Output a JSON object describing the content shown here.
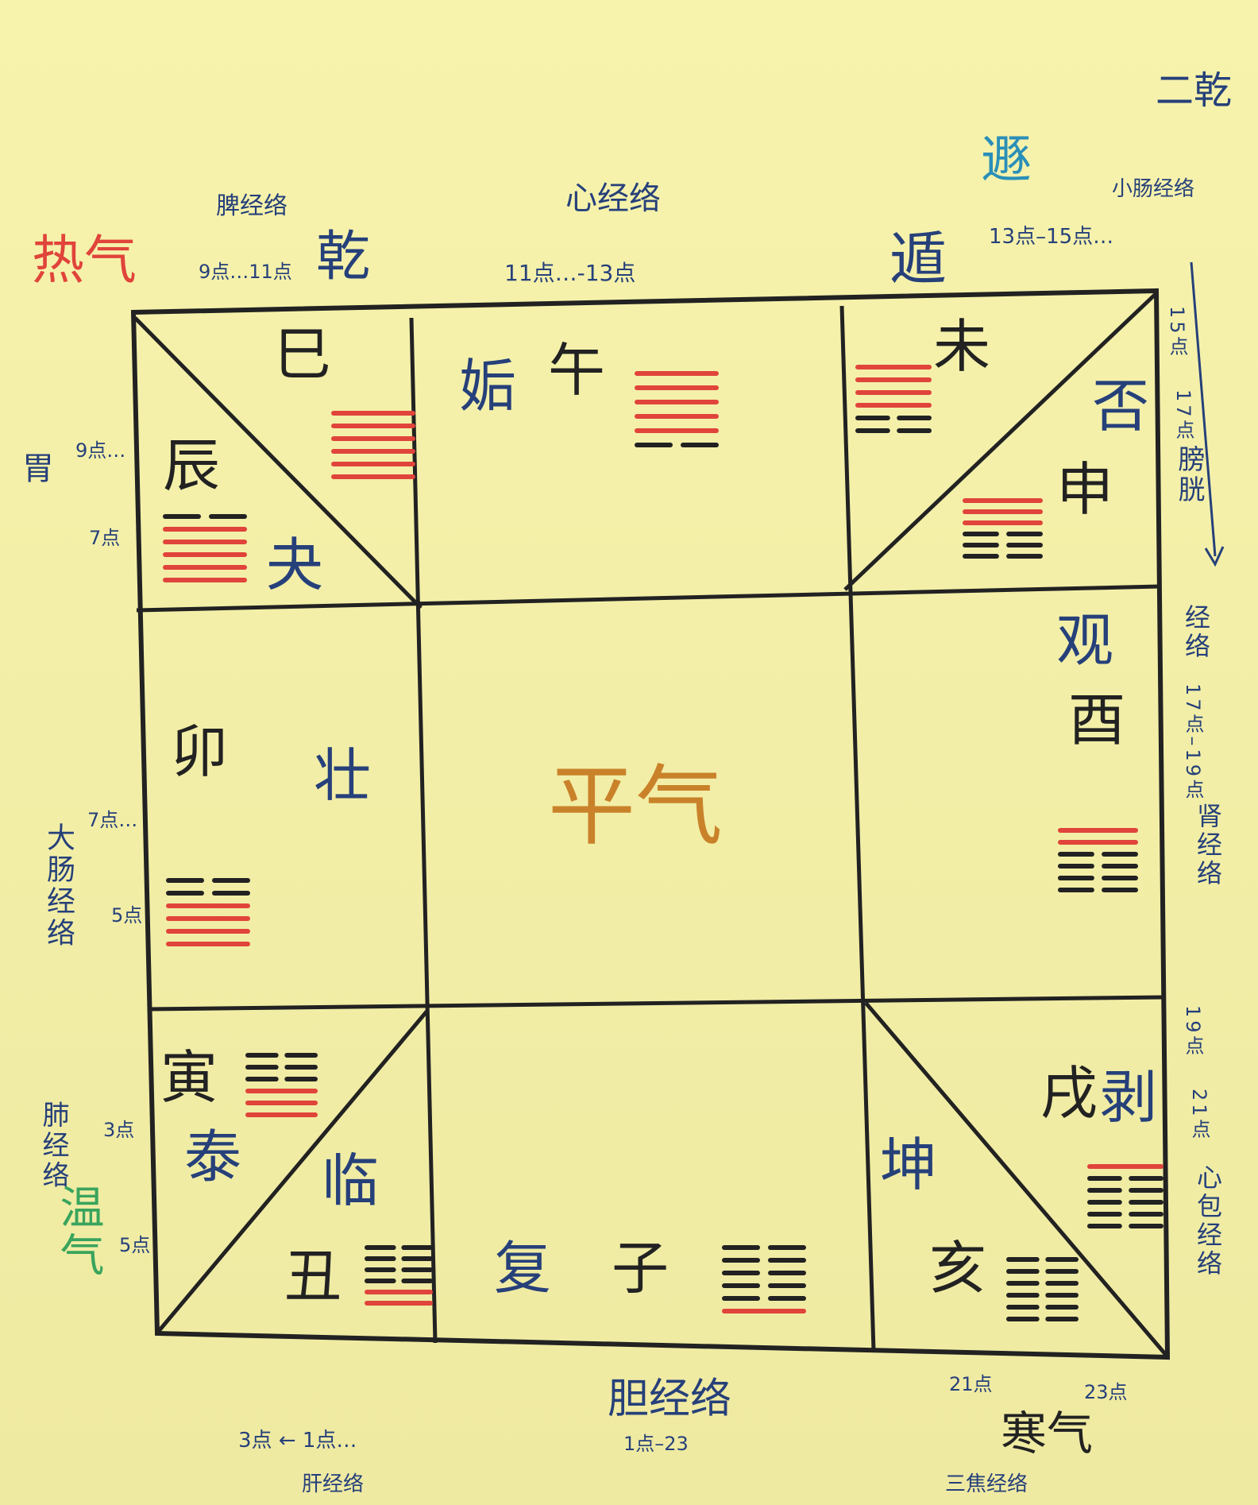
{
  "colors": {
    "paper": "#f3efa8",
    "line": "#222222",
    "ink_blue": "#26407a",
    "ink_red": "#e0443a",
    "ink_orange": "#c9822a",
    "ink_green": "#3aa45c"
  },
  "center": {
    "label": "平气"
  },
  "branches": {
    "si": "巳",
    "wu": "午",
    "wei": "未",
    "shen": "申",
    "you": "酉",
    "xu": "戌",
    "hai": "亥",
    "zi": "子",
    "chou": "丑",
    "yin": "寅",
    "mao": "卯",
    "chen": "辰"
  },
  "hexagram_names": {
    "gou": "姤",
    "dun": "遁",
    "pi": "否",
    "guan": "观",
    "bo": "剥",
    "kun": "坤",
    "fu": "复",
    "lin": "临",
    "tai": "泰",
    "zhuang": "壮",
    "guai": "夬",
    "qian": "乾"
  },
  "hexagrams": [
    {
      "id": "qian",
      "lines": "YYYYYY"
    },
    {
      "id": "gou",
      "lines": "YYYYYN"
    },
    {
      "id": "dun",
      "lines": "YYYYNN"
    },
    {
      "id": "pi",
      "lines": "YYYNNN"
    },
    {
      "id": "guan",
      "lines": "YYNNNN"
    },
    {
      "id": "bo",
      "lines": "YNNNNN"
    },
    {
      "id": "kun",
      "lines": "NNNNNN"
    },
    {
      "id": "fu",
      "lines": "NNNNNY"
    },
    {
      "id": "lin",
      "lines": "NNNNYY"
    },
    {
      "id": "tai",
      "lines": "NNNYYY"
    },
    {
      "id": "zhuang",
      "lines": "NNYYYY"
    },
    {
      "id": "guai",
      "lines": "NYYYYY"
    }
  ],
  "notes": {
    "re_qi": "热气",
    "pi_jingluo": "脾经络",
    "pi_time": "9点…11点",
    "xin_jingluo": "心经络",
    "xin_time": "11点…-13点",
    "dun_top": "遯",
    "xiaochang": "小肠经络",
    "xiaochang_time": "13点–15点…",
    "er_qian": "二乾",
    "wei_jing": "胃",
    "wei_time_a": "9点…",
    "wei_time_b": "7点",
    "pangguang_a": "15点",
    "pangguang_b": "17点",
    "pangguang_c": "膀胱",
    "shen_jingluo": "经络",
    "shen_time": "17点–19点",
    "shen_label": "肾经络",
    "dachang": "大肠经络",
    "dachang_time_a": "7点…",
    "dachang_time_b": "5点",
    "xinbao_time_a": "19点",
    "xinbao_time_b": "21点",
    "xinbao": "心包经络",
    "fei": "肺经络",
    "fei_time_a": "3点",
    "fei_time_b": "5点",
    "wen_qi": "温气",
    "dan_jingluo": "胆经络",
    "dan_time": "1点–23",
    "gan_time": "3点 ← 1点…",
    "gan": "肝经络",
    "han_qi": "寒气",
    "sanjiao_time_a": "21点",
    "sanjiao_time_b": "23点",
    "sanjiao": "三焦经络"
  }
}
